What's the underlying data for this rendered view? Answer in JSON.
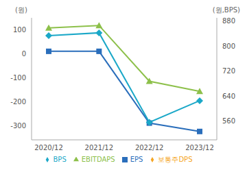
{
  "chart_data": {
    "type": "line",
    "y_label": "(원)",
    "y2_label": "(원,BPS)",
    "categories": [
      "2020/12",
      "2021/12",
      "2022/12",
      "2023/12"
    ],
    "series": [
      {
        "name": "EPS",
        "color": "#2a6ebb",
        "marker": "square",
        "values": [
          10,
          10,
          -290,
          -325
        ]
      },
      {
        "name": "BPS",
        "color": "#1ba8c8",
        "marker": "diamond",
        "axis": "y2",
        "values": [
          833,
          842,
          556,
          625
        ]
      },
      {
        "name": "EBITDAPS",
        "color": "#8dc04a",
        "marker": "triangle",
        "values": [
          108,
          118,
          -115,
          -157
        ]
      },
      {
        "name": "보통주DPS",
        "color": "#f5a623",
        "marker": "diamond",
        "values": [
          null,
          null,
          null,
          null
        ]
      }
    ],
    "ylim": [
      -360,
      150
    ],
    "yticks": [
      -300,
      -200,
      -100,
      0,
      100
    ],
    "y2lim": [
      500,
      890
    ],
    "y2ticks": [
      560,
      640,
      720,
      800,
      880
    ],
    "grid": false,
    "legend": "bottom"
  }
}
